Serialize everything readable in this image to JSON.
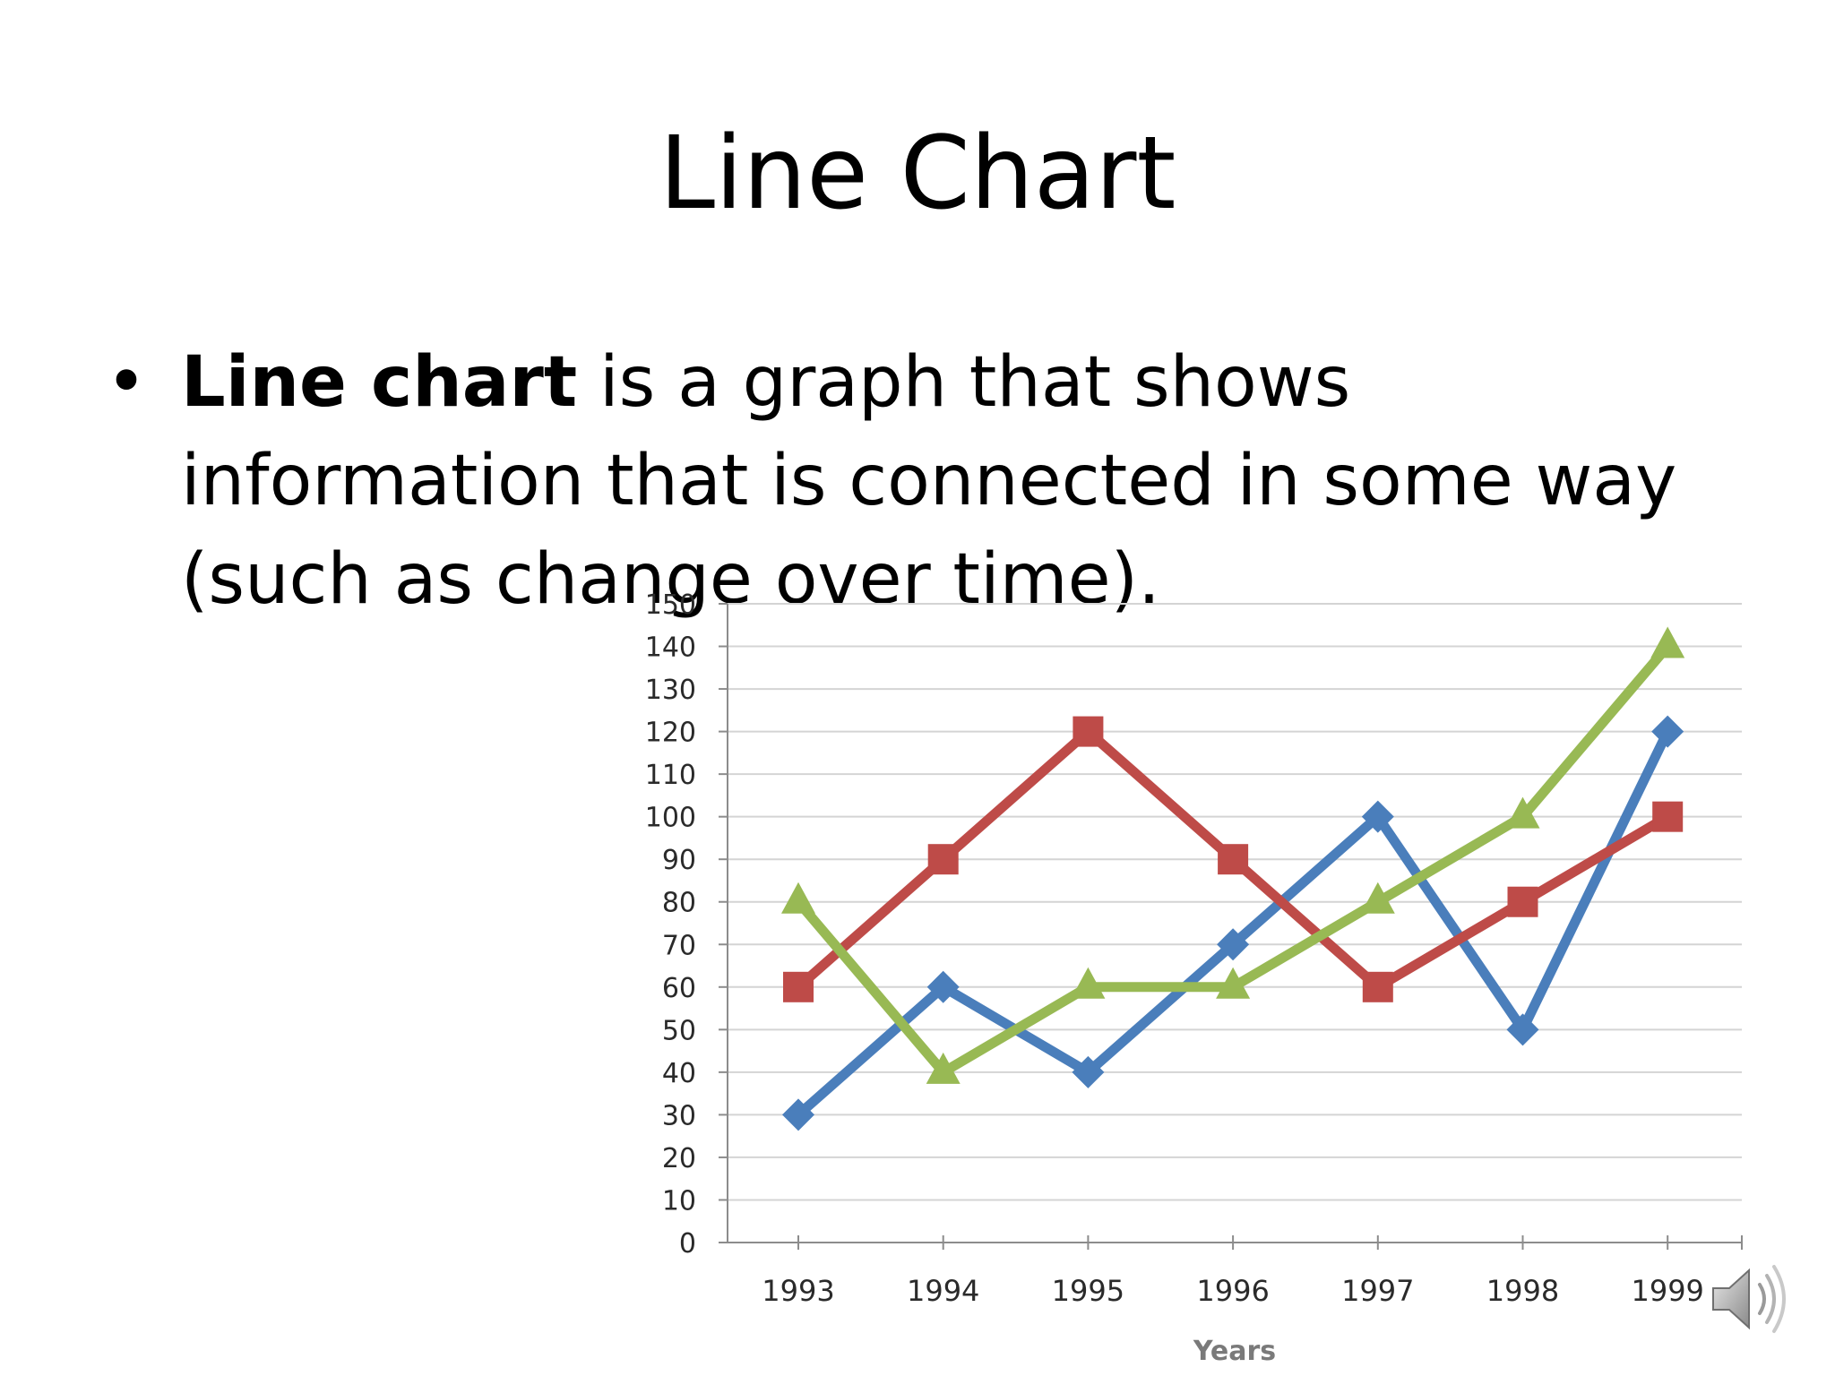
{
  "slide": {
    "title": "Line Chart",
    "bullet_bold": "Line chart",
    "bullet_rest": " is a graph that shows information that is connected in some way (such as change over time).",
    "bullet_glyph": "•"
  },
  "audio_icon": "speaker-icon",
  "chart_data": {
    "type": "line",
    "categories": [
      "1993",
      "1994",
      "1995",
      "1996",
      "1997",
      "1998",
      "1999"
    ],
    "series": [
      {
        "color": "#4a7ebb",
        "marker": "diamond",
        "values": [
          30,
          60,
          40,
          70,
          100,
          50,
          120
        ]
      },
      {
        "color": "#be4b48",
        "marker": "square",
        "values": [
          60,
          90,
          120,
          90,
          60,
          80,
          100
        ]
      },
      {
        "color": "#98b954",
        "marker": "triangle",
        "values": [
          80,
          40,
          60,
          60,
          80,
          100,
          140
        ]
      }
    ],
    "ylim": [
      0,
      150
    ],
    "yticks": [
      0,
      10,
      20,
      30,
      40,
      50,
      60,
      70,
      80,
      90,
      100,
      110,
      120,
      130,
      140,
      150
    ],
    "xlabel": "Years",
    "ylabel": "",
    "title": "",
    "grid": true
  }
}
